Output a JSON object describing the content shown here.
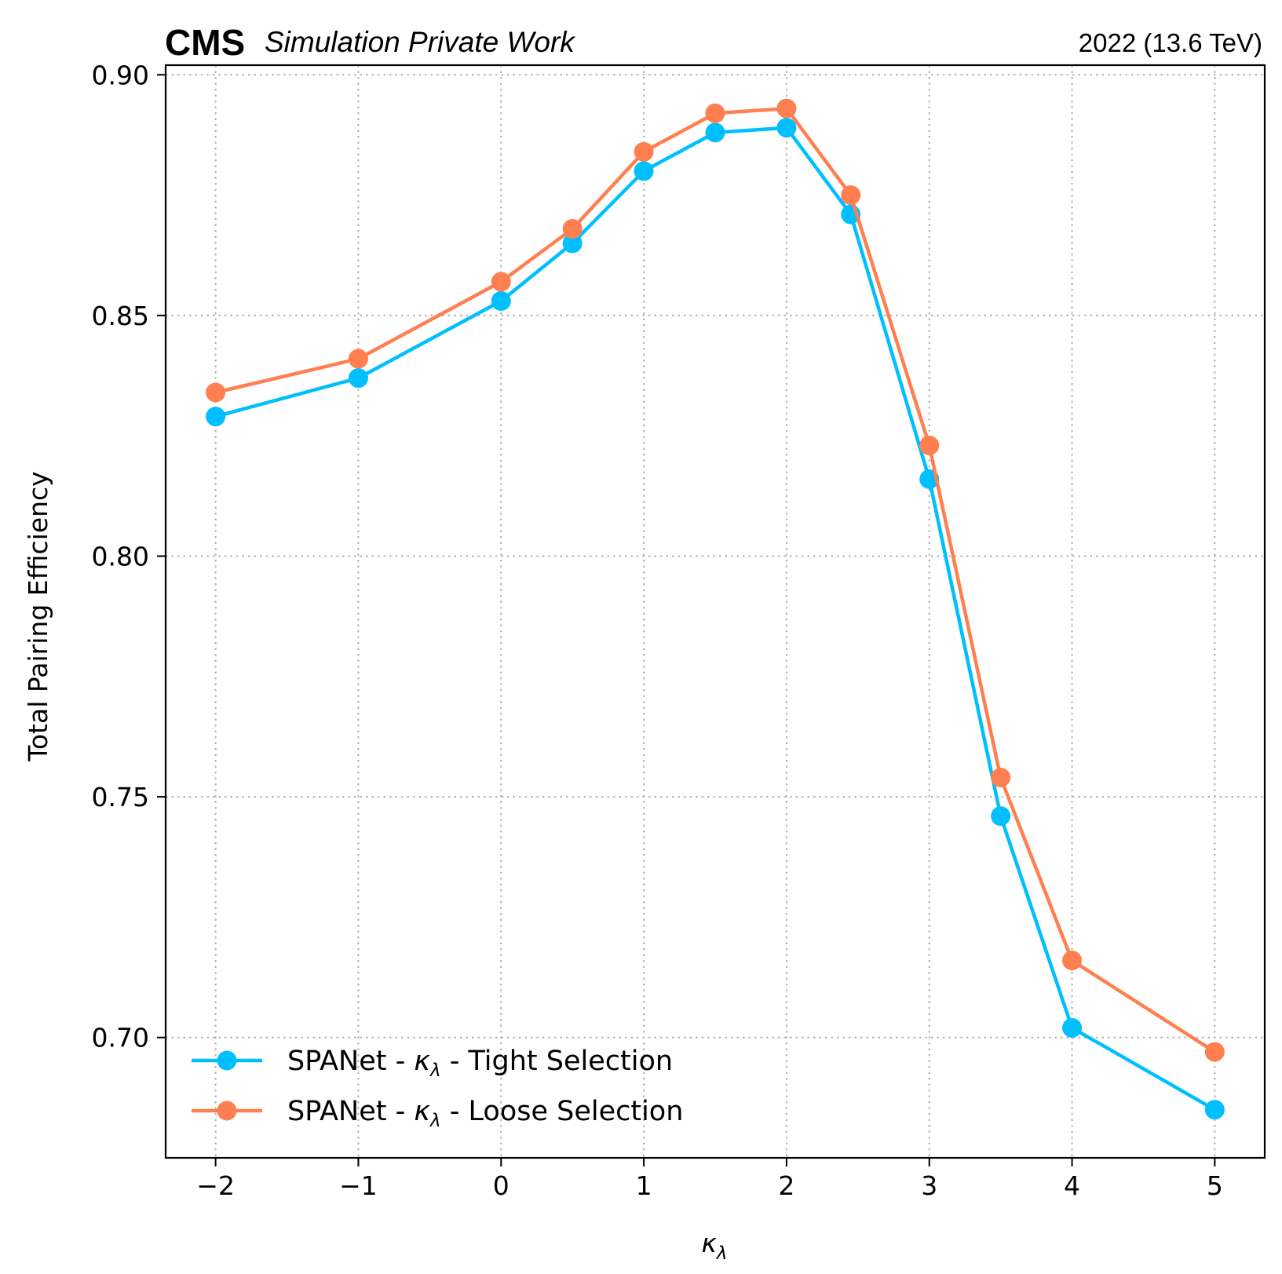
{
  "header": {
    "experiment": "CMS",
    "subtitle": "Simulation Private Work",
    "lumi": "2022 (13.6 TeV)"
  },
  "chart_data": {
    "type": "line",
    "xlabel": "κ",
    "xlabel_sub": "λ",
    "ylabel": "Total Pairing Efficiency",
    "xlim": [
      -2.35,
      5.35
    ],
    "ylim": [
      0.675,
      0.902
    ],
    "xticks": [
      -2,
      -1,
      0,
      1,
      2,
      3,
      4,
      5
    ],
    "xtick_labels": [
      "−2",
      "−1",
      "0",
      "1",
      "2",
      "3",
      "4",
      "5"
    ],
    "yticks": [
      0.7,
      0.75,
      0.8,
      0.85,
      0.9
    ],
    "ytick_labels": [
      "0.70",
      "0.75",
      "0.80",
      "0.85",
      "0.90"
    ],
    "grid": true,
    "legend_position": "lower-left",
    "x": [
      -2,
      -1,
      0,
      0.5,
      1,
      1.5,
      2,
      2.45,
      3,
      3.5,
      4,
      5
    ],
    "series": [
      {
        "name": "SPANet - κλ - Tight Selection",
        "legend_pre": "SPANet - ",
        "legend_sym": "κ",
        "legend_sub": "λ",
        "legend_post": " - Tight Selection",
        "color": "#00bfff",
        "values": [
          0.829,
          0.837,
          0.853,
          0.865,
          0.88,
          0.888,
          0.889,
          0.871,
          0.816,
          0.746,
          0.702,
          0.685
        ]
      },
      {
        "name": "SPANet - κλ - Loose Selection",
        "legend_pre": "SPANet - ",
        "legend_sym": "κ",
        "legend_sub": "λ",
        "legend_post": " - Loose Selection",
        "color": "#ff7f50",
        "values": [
          0.834,
          0.841,
          0.857,
          0.868,
          0.884,
          0.892,
          0.893,
          0.875,
          0.823,
          0.754,
          0.716,
          0.697
        ]
      }
    ]
  }
}
